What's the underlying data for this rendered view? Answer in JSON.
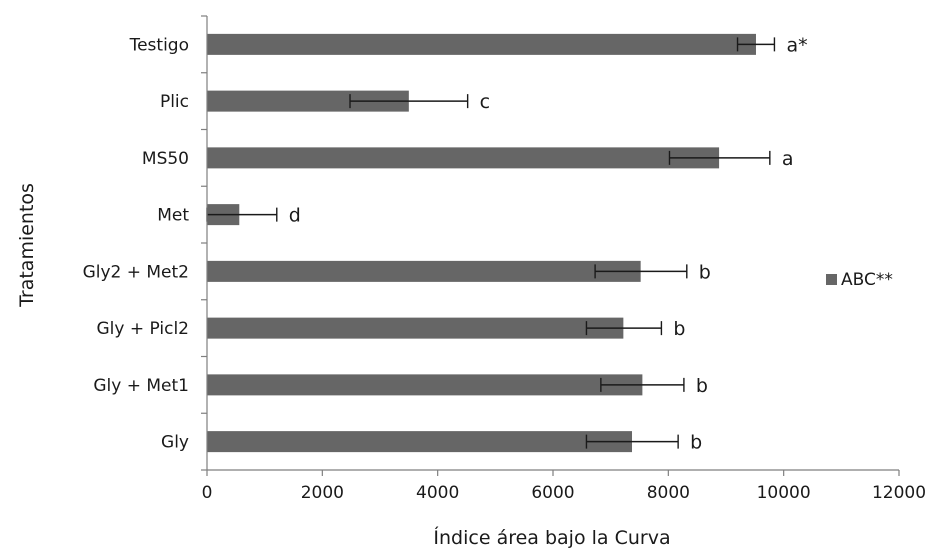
{
  "colors": {
    "bar": "#666666",
    "axis": "#7f7f7f",
    "error": "#1a1a1a",
    "text": "#1a1a1a"
  },
  "chart_data": {
    "type": "bar",
    "orientation": "horizontal",
    "xlabel": "Índice área bajo la Curva",
    "ylabel": "Tratamientos",
    "xlim": [
      0,
      12000
    ],
    "xticks": [
      0,
      2000,
      4000,
      6000,
      8000,
      10000,
      12000
    ],
    "grid": false,
    "legend_position": "right",
    "categories": [
      "Testigo",
      "Plic",
      "MS50",
      "Met",
      "Gly2 + Met2",
      "Gly + Picl2",
      "Gly + Met1",
      "Gly"
    ],
    "series": [
      {
        "name": "ABC**",
        "values": [
          9520,
          3500,
          8880,
          560,
          7520,
          7220,
          7550,
          7370
        ],
        "error_low": [
          9200,
          2480,
          8020,
          0,
          6730,
          6580,
          6830,
          6580
        ],
        "error_high": [
          9840,
          4520,
          9760,
          1210,
          8320,
          7880,
          8270,
          8170
        ],
        "significance": [
          "a*",
          "c",
          "a",
          "d",
          "b",
          "b",
          "b",
          "b"
        ]
      }
    ]
  }
}
